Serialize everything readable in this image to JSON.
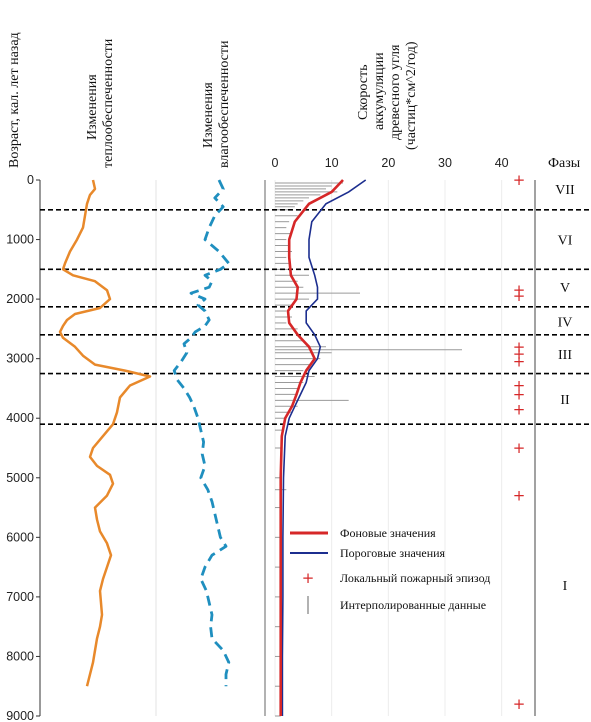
{
  "chart_data": {
    "type": "line",
    "y_axis": {
      "label": "Возраст, кал. лет назад",
      "ticks": [
        0,
        1000,
        2000,
        3000,
        4000,
        5000,
        6000,
        7000,
        8000,
        9000
      ],
      "range": [
        0,
        9000
      ],
      "reversed": true
    },
    "columns": {
      "heat": {
        "title_lines": [
          "Изменения",
          "теплообеспеченности"
        ],
        "color": "#e8892b"
      },
      "moisture": {
        "title_lines": [
          "Изменения",
          "влагообеспеченности"
        ],
        "color": "#1f8fbf"
      },
      "charcoal": {
        "title_lines": [
          "Скорость",
          "аккумуляции",
          "древесного угля",
          "(частиц*см^2/год)"
        ],
        "x_ticks": [
          0,
          10,
          20,
          30,
          40
        ],
        "x_range": [
          0,
          45
        ]
      },
      "phases": {
        "title": "Фазы"
      }
    },
    "phase_boundaries": [
      500,
      1500,
      2130,
      2600,
      3250,
      4100
    ],
    "phases": [
      {
        "label": "VII",
        "age": 150
      },
      {
        "label": "VI",
        "age": 1000
      },
      {
        "label": "V",
        "age": 1800
      },
      {
        "label": "IV",
        "age": 2380
      },
      {
        "label": "III",
        "age": 2920
      },
      {
        "label": "II",
        "age": 3680
      },
      {
        "label": "I",
        "age": 6800
      }
    ],
    "series": [
      {
        "name": "Фоновые значения",
        "color": "#d62728",
        "points": [
          [
            0,
            12
          ],
          [
            200,
            10
          ],
          [
            400,
            6
          ],
          [
            700,
            3.5
          ],
          [
            1000,
            2.5
          ],
          [
            1300,
            2.5
          ],
          [
            1600,
            2.8
          ],
          [
            1800,
            4
          ],
          [
            2000,
            3.8
          ],
          [
            2200,
            2.3
          ],
          [
            2400,
            2.5
          ],
          [
            2600,
            4
          ],
          [
            2800,
            6
          ],
          [
            3000,
            7
          ],
          [
            3200,
            5.5
          ],
          [
            3400,
            4.5
          ],
          [
            3600,
            3.8
          ],
          [
            3800,
            3
          ],
          [
            4000,
            1.8
          ],
          [
            4300,
            1.2
          ],
          [
            5000,
            1.0
          ],
          [
            6000,
            1.0
          ],
          [
            7000,
            1.0
          ],
          [
            8000,
            1.0
          ],
          [
            9000,
            1.0
          ]
        ]
      },
      {
        "name": "Пороговые значения",
        "color": "#1c2e8f",
        "points": [
          [
            0,
            16
          ],
          [
            200,
            13
          ],
          [
            400,
            9
          ],
          [
            700,
            6.5
          ],
          [
            1000,
            6
          ],
          [
            1300,
            6
          ],
          [
            1600,
            7
          ],
          [
            1800,
            7.5
          ],
          [
            2000,
            7.5
          ],
          [
            2200,
            5.5
          ],
          [
            2400,
            5.5
          ],
          [
            2600,
            7
          ],
          [
            2800,
            8
          ],
          [
            3000,
            7.5
          ],
          [
            3200,
            6
          ],
          [
            3400,
            5.5
          ],
          [
            3600,
            4.5
          ],
          [
            3800,
            3.5
          ],
          [
            4000,
            2.5
          ],
          [
            4300,
            1.8
          ],
          [
            5000,
            1.5
          ],
          [
            6000,
            1.4
          ],
          [
            7000,
            1.4
          ],
          [
            8000,
            1.3
          ],
          [
            9000,
            1.3
          ]
        ]
      },
      {
        "name": "Локальный пожарный эпизод",
        "color": "#d62728",
        "ages": [
          0,
          1850,
          1950,
          2800,
          2920,
          3050,
          3450,
          3600,
          3850,
          4500,
          5300,
          8800
        ],
        "x": 42
      },
      {
        "name": "Интерполированные данные",
        "color": "#999999"
      }
    ],
    "interpolated_spikes": [
      [
        50,
        12
      ],
      [
        100,
        10
      ],
      [
        150,
        9
      ],
      [
        200,
        11
      ],
      [
        250,
        8
      ],
      [
        300,
        6
      ],
      [
        350,
        5
      ],
      [
        400,
        4
      ],
      [
        450,
        3.5
      ],
      [
        500,
        3
      ],
      [
        600,
        4
      ],
      [
        700,
        2.5
      ],
      [
        800,
        2
      ],
      [
        900,
        3
      ],
      [
        1000,
        2
      ],
      [
        1100,
        2.5
      ],
      [
        1200,
        3
      ],
      [
        1300,
        2
      ],
      [
        1400,
        2.5
      ],
      [
        1500,
        3
      ],
      [
        1600,
        6
      ],
      [
        1700,
        4
      ],
      [
        1800,
        5
      ],
      [
        1900,
        15
      ],
      [
        2000,
        6
      ],
      [
        2100,
        3
      ],
      [
        2200,
        2
      ],
      [
        2300,
        3
      ],
      [
        2400,
        2
      ],
      [
        2500,
        4
      ],
      [
        2600,
        3
      ],
      [
        2700,
        5
      ],
      [
        2800,
        9
      ],
      [
        2850,
        33
      ],
      [
        2900,
        10
      ],
      [
        3000,
        8
      ],
      [
        3100,
        6
      ],
      [
        3200,
        5
      ],
      [
        3300,
        7
      ],
      [
        3400,
        5
      ],
      [
        3500,
        4
      ],
      [
        3600,
        4
      ],
      [
        3700,
        13
      ],
      [
        3800,
        4
      ],
      [
        3900,
        3
      ],
      [
        4000,
        2
      ],
      [
        4200,
        1.5
      ],
      [
        4500,
        1
      ],
      [
        5000,
        1
      ],
      [
        5200,
        2
      ],
      [
        5500,
        1
      ],
      [
        6000,
        1
      ],
      [
        6500,
        1
      ],
      [
        7000,
        1
      ],
      [
        7500,
        1
      ],
      [
        8000,
        1
      ],
      [
        8500,
        1
      ],
      [
        9000,
        1
      ]
    ],
    "heat_curve": [
      [
        0,
        0.38
      ],
      [
        150,
        0.4
      ],
      [
        250,
        0.35
      ],
      [
        400,
        0.32
      ],
      [
        600,
        0.3
      ],
      [
        800,
        0.28
      ],
      [
        1000,
        0.22
      ],
      [
        1200,
        0.15
      ],
      [
        1400,
        0.1
      ],
      [
        1500,
        0.08
      ],
      [
        1600,
        0.18
      ],
      [
        1700,
        0.4
      ],
      [
        1850,
        0.52
      ],
      [
        2000,
        0.55
      ],
      [
        2150,
        0.45
      ],
      [
        2250,
        0.2
      ],
      [
        2350,
        0.12
      ],
      [
        2450,
        0.08
      ],
      [
        2550,
        0.05
      ],
      [
        2650,
        0.08
      ],
      [
        2800,
        0.2
      ],
      [
        2950,
        0.28
      ],
      [
        3100,
        0.4
      ],
      [
        3200,
        0.7
      ],
      [
        3300,
        0.95
      ],
      [
        3450,
        0.75
      ],
      [
        3650,
        0.65
      ],
      [
        3900,
        0.62
      ],
      [
        4100,
        0.58
      ],
      [
        4300,
        0.48
      ],
      [
        4500,
        0.38
      ],
      [
        4650,
        0.35
      ],
      [
        4800,
        0.42
      ],
      [
        4950,
        0.55
      ],
      [
        5100,
        0.58
      ],
      [
        5300,
        0.52
      ],
      [
        5500,
        0.4
      ],
      [
        5700,
        0.42
      ],
      [
        5900,
        0.45
      ],
      [
        6100,
        0.52
      ],
      [
        6300,
        0.56
      ],
      [
        6500,
        0.52
      ],
      [
        6700,
        0.48
      ],
      [
        6900,
        0.45
      ],
      [
        7100,
        0.46
      ],
      [
        7300,
        0.47
      ],
      [
        7500,
        0.45
      ],
      [
        7700,
        0.42
      ],
      [
        7900,
        0.4
      ],
      [
        8100,
        0.38
      ],
      [
        8300,
        0.35
      ],
      [
        8500,
        0.32
      ]
    ],
    "moisture_curve": [
      [
        0,
        0.35
      ],
      [
        150,
        0.38
      ],
      [
        300,
        0.32
      ],
      [
        450,
        0.38
      ],
      [
        600,
        0.32
      ],
      [
        800,
        0.28
      ],
      [
        1000,
        0.25
      ],
      [
        1200,
        0.35
      ],
      [
        1400,
        0.42
      ],
      [
        1500,
        0.36
      ],
      [
        1600,
        0.25
      ],
      [
        1700,
        0.3
      ],
      [
        1800,
        0.28
      ],
      [
        1900,
        0.15
      ],
      [
        2000,
        0.25
      ],
      [
        2100,
        0.2
      ],
      [
        2200,
        0.25
      ],
      [
        2350,
        0.28
      ],
      [
        2450,
        0.25
      ],
      [
        2550,
        0.18
      ],
      [
        2650,
        0.15
      ],
      [
        2750,
        0.1
      ],
      [
        2900,
        0.12
      ],
      [
        3050,
        0.08
      ],
      [
        3200,
        0.03
      ],
      [
        3350,
        0.05
      ],
      [
        3500,
        0.1
      ],
      [
        3650,
        0.14
      ],
      [
        3800,
        0.17
      ],
      [
        4000,
        0.2
      ],
      [
        4200,
        0.22
      ],
      [
        4400,
        0.24
      ],
      [
        4600,
        0.23
      ],
      [
        4800,
        0.25
      ],
      [
        5000,
        0.22
      ],
      [
        5200,
        0.27
      ],
      [
        5400,
        0.3
      ],
      [
        5600,
        0.32
      ],
      [
        5800,
        0.34
      ],
      [
        6000,
        0.36
      ],
      [
        6150,
        0.4
      ],
      [
        6300,
        0.3
      ],
      [
        6500,
        0.25
      ],
      [
        6700,
        0.22
      ],
      [
        6900,
        0.26
      ],
      [
        7100,
        0.28
      ],
      [
        7300,
        0.3
      ],
      [
        7500,
        0.29
      ],
      [
        7700,
        0.3
      ],
      [
        7900,
        0.38
      ],
      [
        8100,
        0.42
      ],
      [
        8300,
        0.4
      ],
      [
        8500,
        0.4
      ]
    ]
  }
}
